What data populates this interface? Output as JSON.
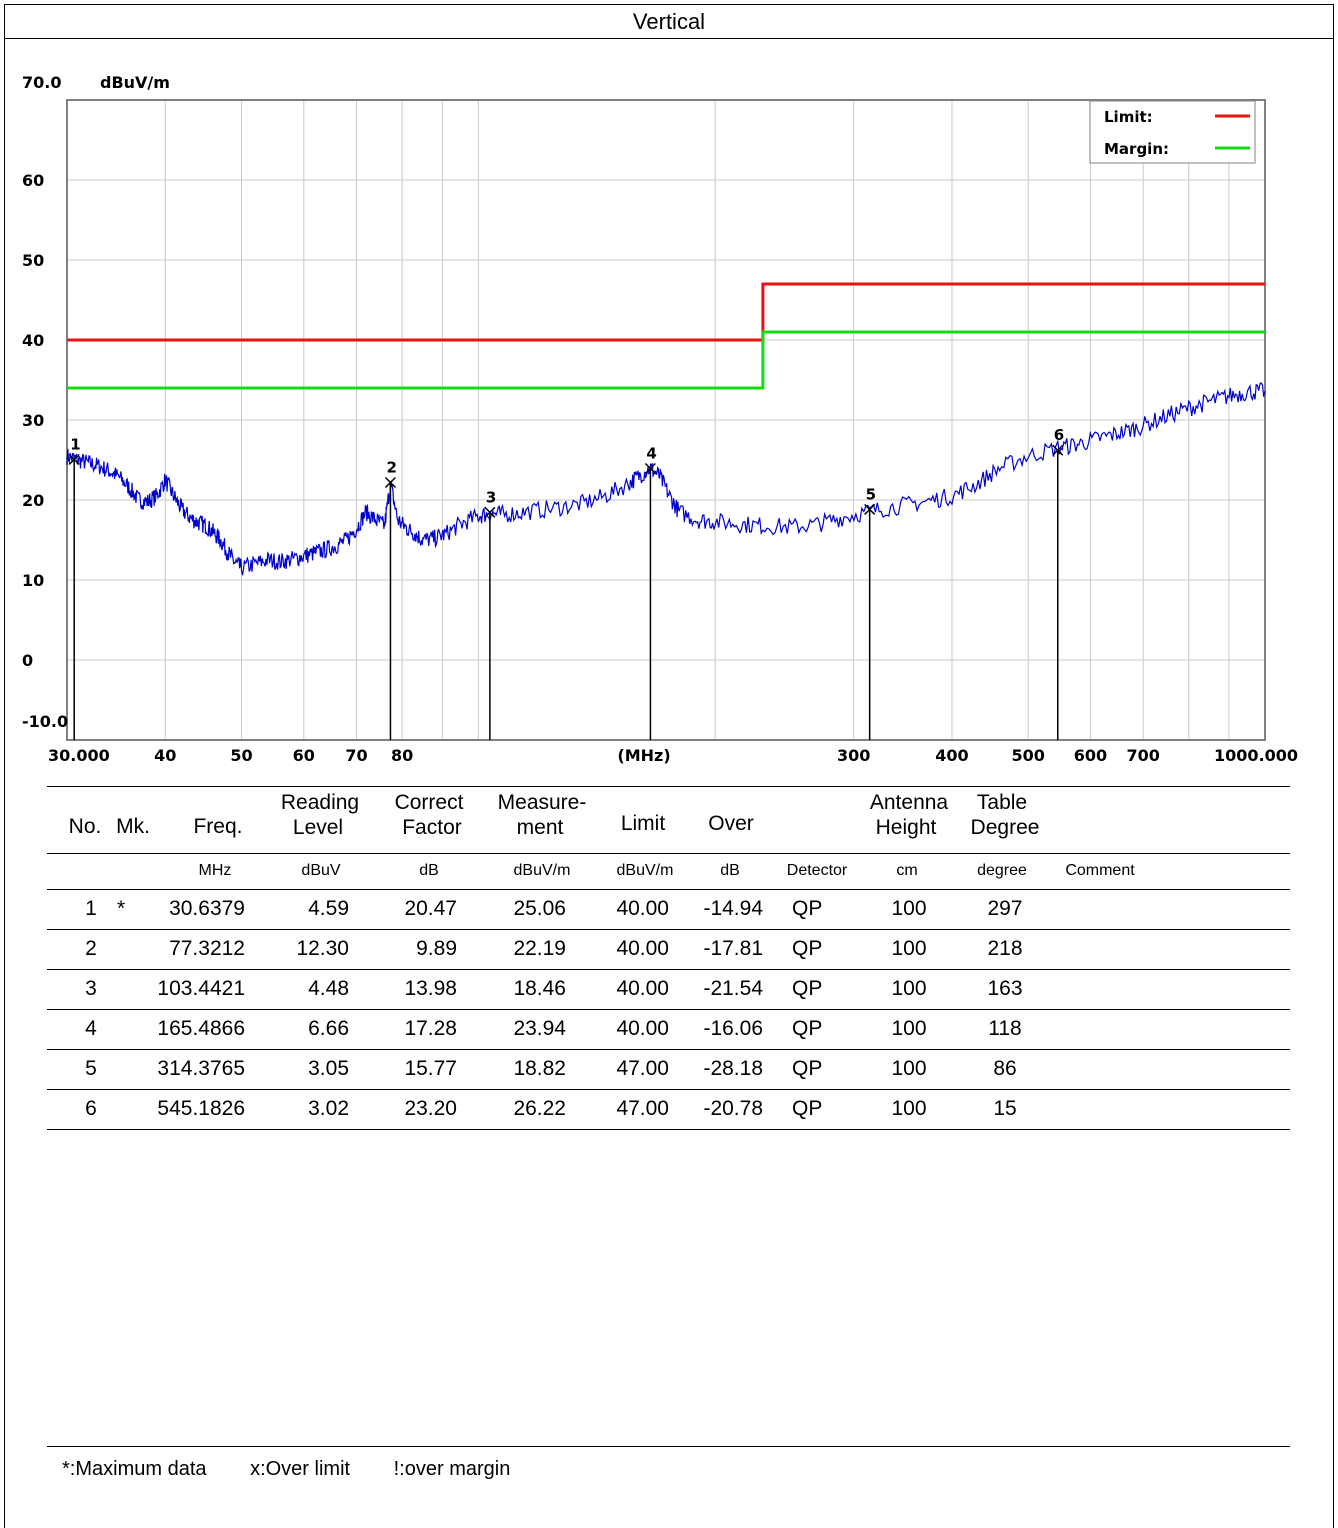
{
  "title": "Vertical",
  "chart_data": {
    "type": "line",
    "x_scale": "log",
    "xlim": [
      30,
      1000
    ],
    "ylim": [
      -10,
      70
    ],
    "y_unit": "dBuV/m",
    "x_unit": "(MHz)",
    "y_ticks": [
      "70.0",
      "60",
      "50",
      "40",
      "30",
      "20",
      "10",
      "0",
      "-10.0"
    ],
    "x_ticks": [
      {
        "v": 30,
        "label": "30.000"
      },
      {
        "v": 40,
        "label": "40"
      },
      {
        "v": 50,
        "label": "50"
      },
      {
        "v": 60,
        "label": "60"
      },
      {
        "v": 70,
        "label": "70"
      },
      {
        "v": 80,
        "label": "80"
      },
      {
        "v": 300,
        "label": "300"
      },
      {
        "v": 400,
        "label": "400"
      },
      {
        "v": 500,
        "label": "500"
      },
      {
        "v": 600,
        "label": "600"
      },
      {
        "v": 700,
        "label": "700"
      },
      {
        "v": 1000,
        "label": "1000.000"
      }
    ],
    "grid": true,
    "legend": {
      "position": "top-right",
      "entries": [
        {
          "label": "Limit:",
          "color": "#ee1111"
        },
        {
          "label": "Margin:",
          "color": "#11dd11"
        }
      ]
    },
    "limit_line": {
      "color": "#ee1111",
      "points": [
        [
          30,
          40
        ],
        [
          230,
          40
        ],
        [
          230,
          47
        ],
        [
          1000,
          47
        ]
      ]
    },
    "margin_line": {
      "color": "#11dd11",
      "points": [
        [
          30,
          34
        ],
        [
          230,
          34
        ],
        [
          230,
          41
        ],
        [
          1000,
          41
        ]
      ]
    },
    "trace": {
      "color": "#0000cc",
      "x": [
        30,
        31,
        32,
        33,
        34,
        35,
        36,
        37,
        38,
        39,
        40,
        41,
        42,
        43,
        44,
        45,
        46,
        47,
        48,
        49,
        50,
        52,
        54,
        56,
        58,
        60,
        62,
        64,
        66,
        68,
        70,
        72,
        74,
        76,
        77.3,
        79,
        81,
        83,
        85,
        88,
        91,
        95,
        100,
        103.4,
        108,
        115,
        125,
        135,
        145,
        155,
        160,
        165.5,
        170,
        175,
        180,
        190,
        200,
        215,
        230,
        250,
        270,
        290,
        314.4,
        340,
        370,
        400,
        430,
        460,
        500,
        545.2,
        580,
        620,
        660,
        700,
        750,
        800,
        850,
        900,
        950,
        1000
      ],
      "y": [
        25.5,
        25.0,
        24.6,
        24.2,
        23.6,
        22.8,
        21.5,
        20.0,
        19.8,
        20.5,
        22.5,
        20.5,
        18.8,
        17.8,
        17.2,
        16.8,
        16.0,
        15.0,
        13.5,
        12.2,
        11.5,
        12.0,
        12.5,
        12.3,
        12.6,
        13.0,
        13.4,
        13.8,
        14.3,
        15.0,
        16.5,
        18.5,
        17.5,
        16.8,
        22.0,
        17.5,
        16.5,
        15.8,
        15.0,
        15.2,
        15.8,
        17.0,
        18.0,
        18.3,
        18.2,
        18.5,
        19.0,
        19.5,
        20.5,
        22.0,
        23.0,
        24.0,
        23.0,
        20.5,
        18.5,
        17.5,
        17.3,
        17.0,
        16.8,
        16.6,
        17.0,
        17.8,
        18.6,
        19.2,
        19.8,
        20.5,
        22.0,
        24.0,
        25.5,
        26.5,
        27.0,
        27.8,
        28.5,
        29.3,
        30.5,
        31.5,
        32.3,
        33.0,
        33.5,
        33.6
      ]
    },
    "markers": [
      {
        "no": "1",
        "freq": 30.6379,
        "level": 25.06
      },
      {
        "no": "2",
        "freq": 77.3212,
        "level": 22.19
      },
      {
        "no": "3",
        "freq": 103.4421,
        "level": 18.46
      },
      {
        "no": "4",
        "freq": 165.4866,
        "level": 23.94
      },
      {
        "no": "5",
        "freq": 314.3765,
        "level": 18.82
      },
      {
        "no": "6",
        "freq": 545.1826,
        "level": 26.22
      }
    ]
  },
  "table": {
    "headers": {
      "no": "No.",
      "mk": "Mk.",
      "freq": "Freq.",
      "reading_1": "Reading",
      "reading_2": "Level",
      "correct_1": "Correct",
      "correct_2": "Factor",
      "measure_1": "Measure-",
      "measure_2": "ment",
      "limit": "Limit",
      "over": "Over",
      "antenna_1": "Antenna",
      "antenna_2": "Height",
      "table_1": "Table",
      "table_2": "Degree"
    },
    "units": {
      "freq": "MHz",
      "reading": "dBuV",
      "correct": "dB",
      "measure": "dBuV/m",
      "limit": "dBuV/m",
      "over": "dB",
      "detector": "Detector",
      "antenna": "cm",
      "degree": "degree",
      "comment": "Comment"
    },
    "rows": [
      {
        "no": "1",
        "mk": "*",
        "freq": "30.6379",
        "reading": "4.59",
        "correct": "20.47",
        "measure": "25.06",
        "limit": "40.00",
        "over": "-14.94",
        "detector": "QP",
        "height": "100",
        "degree": "297"
      },
      {
        "no": "2",
        "mk": "",
        "freq": "77.3212",
        "reading": "12.30",
        "correct": "9.89",
        "measure": "22.19",
        "limit": "40.00",
        "over": "-17.81",
        "detector": "QP",
        "height": "100",
        "degree": "218"
      },
      {
        "no": "3",
        "mk": "",
        "freq": "103.4421",
        "reading": "4.48",
        "correct": "13.98",
        "measure": "18.46",
        "limit": "40.00",
        "over": "-21.54",
        "detector": "QP",
        "height": "100",
        "degree": "163"
      },
      {
        "no": "4",
        "mk": "",
        "freq": "165.4866",
        "reading": "6.66",
        "correct": "17.28",
        "measure": "23.94",
        "limit": "40.00",
        "over": "-16.06",
        "detector": "QP",
        "height": "100",
        "degree": "118"
      },
      {
        "no": "5",
        "mk": "",
        "freq": "314.3765",
        "reading": "3.05",
        "correct": "15.77",
        "measure": "18.82",
        "limit": "47.00",
        "over": "-28.18",
        "detector": "QP",
        "height": "100",
        "degree": "86"
      },
      {
        "no": "6",
        "mk": "",
        "freq": "545.1826",
        "reading": "3.02",
        "correct": "23.20",
        "measure": "26.22",
        "limit": "47.00",
        "over": "-20.78",
        "detector": "QP",
        "height": "100",
        "degree": "15"
      }
    ]
  },
  "footer": {
    "max": "*:Maximum data",
    "over_limit": "x:Over limit",
    "over_margin": "!:over margin"
  }
}
